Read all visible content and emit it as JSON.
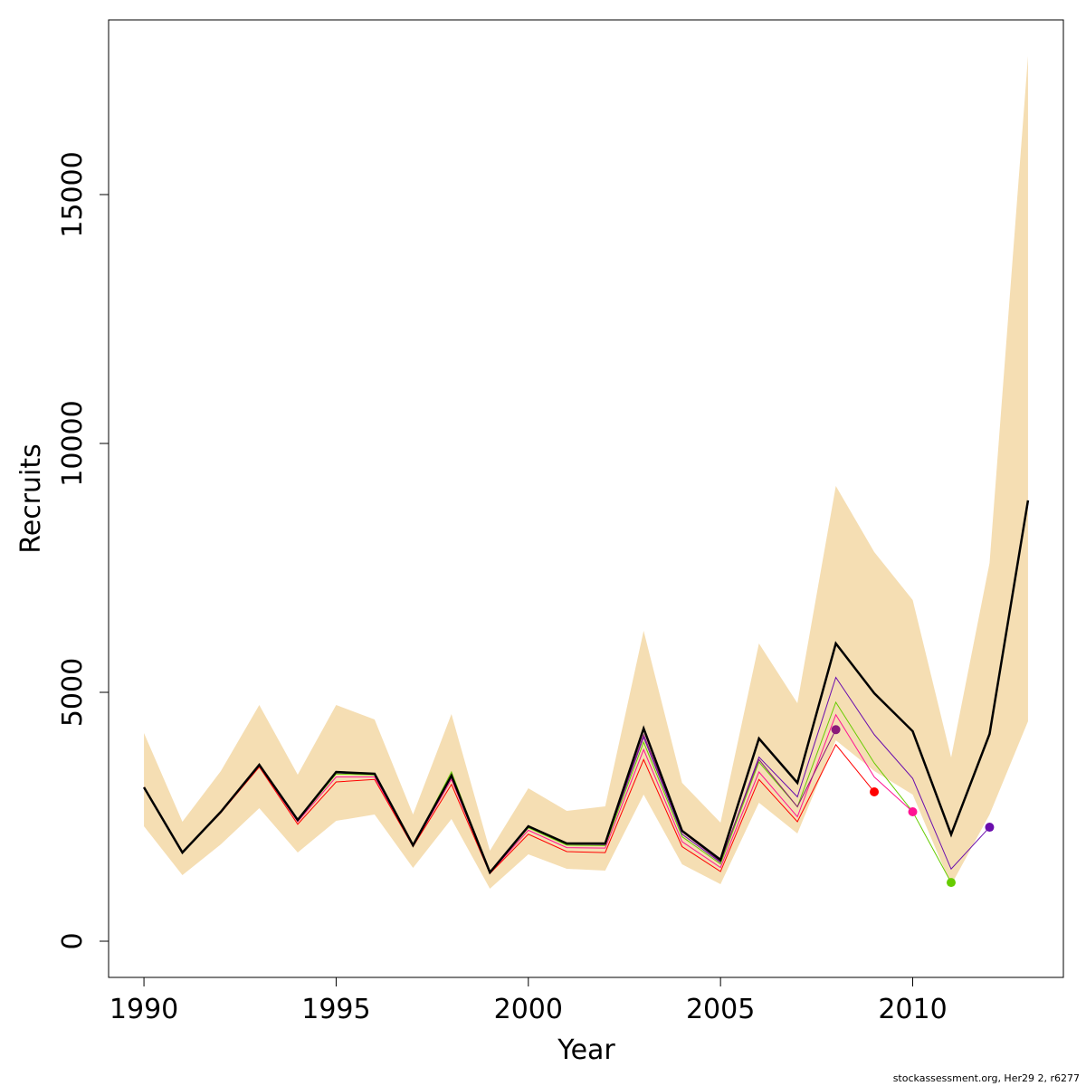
{
  "chart_data": {
    "type": "line",
    "x_label": "Year",
    "y_label": "Recruits",
    "footer": "stockassessment.org, Her29 2, r6277",
    "x": [
      1990,
      1991,
      1992,
      1993,
      1994,
      1995,
      1996,
      1997,
      1998,
      1999,
      2000,
      2001,
      2002,
      2003,
      2004,
      2005,
      2006,
      2007,
      2008,
      2009,
      2010,
      2011,
      2012,
      2013
    ],
    "band": {
      "color": "#f5deb3",
      "lower": [
        2309,
        1327,
        1945,
        2673,
        1782,
        2418,
        2545,
        1473,
        2455,
        1055,
        1745,
        1455,
        1418,
        2945,
        1545,
        1145,
        2782,
        2164,
        4036,
        3418,
        2945,
        1127,
        2545,
        4418
      ],
      "upper": [
        4182,
        2400,
        3418,
        4745,
        3345,
        4745,
        4455,
        2545,
        4564,
        1818,
        3073,
        2618,
        2709,
        6236,
        3182,
        2382,
        5982,
        4782,
        9145,
        7818,
        6855,
        3691,
        7600,
        17782
      ]
    },
    "series": [
      {
        "color": "#6a0dad",
        "values": [
          3091,
          1782,
          2600,
          3530,
          2420,
          3380,
          3350,
          1920,
          3300,
          1380,
          2290,
          1950,
          1940,
          4100,
          2150,
          1580,
          3700,
          2900,
          5300,
          4150,
          3270,
          1450,
          2290,
          null
        ]
      },
      {
        "color": "#66cc00",
        "values": [
          3091,
          1782,
          2600,
          3530,
          2420,
          3360,
          3340,
          1920,
          3400,
          1370,
          2280,
          1930,
          1920,
          4000,
          2100,
          1550,
          3600,
          2700,
          4800,
          3580,
          2600,
          1180,
          null,
          null
        ]
      },
      {
        "color": "#ff1493",
        "values": [
          3091,
          1782,
          2600,
          3520,
          2400,
          3300,
          3300,
          1910,
          3250,
          1370,
          2230,
          1880,
          1870,
          3850,
          2000,
          1480,
          3400,
          2500,
          4550,
          3300,
          2600,
          null,
          null,
          null
        ]
      },
      {
        "color": "#ff0000",
        "values": [
          3091,
          1782,
          2580,
          3500,
          2350,
          3200,
          3250,
          1900,
          3150,
          1360,
          2150,
          1800,
          1780,
          3650,
          1900,
          1400,
          3250,
          2400,
          3950,
          3000,
          null,
          null,
          null,
          null
        ]
      },
      {
        "color": "#8b1a7a",
        "values": [
          3091,
          1782,
          2600,
          3530,
          2430,
          3390,
          3360,
          1925,
          3320,
          1380,
          2300,
          1960,
          1950,
          4150,
          2200,
          1600,
          3650,
          2700,
          4250,
          null,
          null,
          null,
          null,
          null
        ]
      },
      {
        "color": "#000000",
        "values": [
          3091,
          1782,
          2600,
          3545,
          2436,
          3400,
          3364,
          1927,
          3327,
          1382,
          2309,
          1964,
          1964,
          4273,
          2218,
          1636,
          4073,
          3182,
          5982,
          4982,
          4218,
          2145,
          4164,
          8855
        ]
      }
    ],
    "retro_end_marker": true,
    "xlim": [
      1989.08,
      2013.92
    ],
    "ylim": [
      -727,
      18509
    ],
    "xticks": [
      1990,
      1995,
      2000,
      2005,
      2010
    ],
    "yticks": [
      0,
      5000,
      10000,
      15000
    ]
  }
}
